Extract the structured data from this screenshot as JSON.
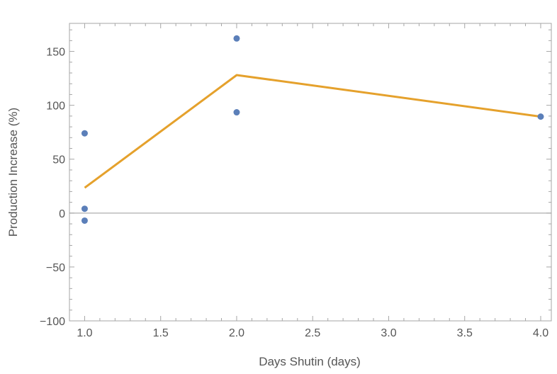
{
  "chart_data": {
    "type": "scatter",
    "xlabel": "Days Shutin (days)",
    "ylabel": "Production Increase (%)",
    "xlim": [
      0.9,
      4.07
    ],
    "ylim": [
      -100,
      176
    ],
    "x_ticks": [
      1.0,
      1.5,
      2.0,
      2.5,
      3.0,
      3.5,
      4.0
    ],
    "x_tick_labels": [
      "1.0",
      "1.5",
      "2.0",
      "2.5",
      "3.0",
      "3.5",
      "4.0"
    ],
    "y_ticks": [
      -100,
      -50,
      0,
      50,
      100,
      150
    ],
    "y_tick_labels": [
      "−100",
      "−50",
      "0",
      "50",
      "100",
      "150"
    ],
    "grid": false,
    "zero_line": true,
    "series": [
      {
        "type": "scatter",
        "color": "#5b7fb9",
        "points": [
          {
            "x": 1.0,
            "y": 74
          },
          {
            "x": 1.0,
            "y": 4
          },
          {
            "x": 1.0,
            "y": -7
          },
          {
            "x": 2.0,
            "y": 162
          },
          {
            "x": 2.0,
            "y": 93.5
          },
          {
            "x": 4.0,
            "y": 89.5
          }
        ]
      },
      {
        "type": "line",
        "color": "#e5a12c",
        "points": [
          {
            "x": 1.0,
            "y": 23.5
          },
          {
            "x": 2.0,
            "y": 128
          },
          {
            "x": 4.0,
            "y": 89.5
          }
        ]
      }
    ]
  }
}
